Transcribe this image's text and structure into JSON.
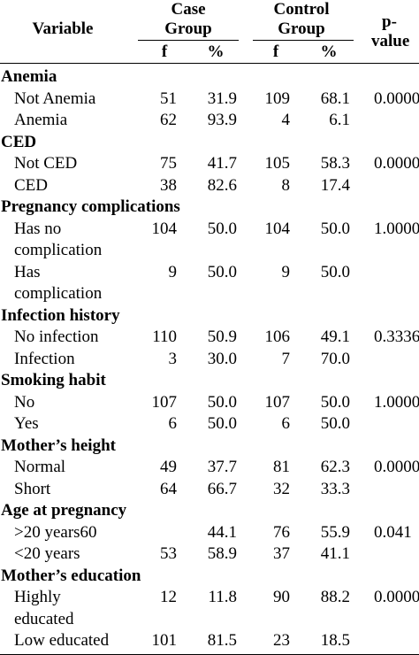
{
  "header": {
    "variable": "Variable",
    "case_group": [
      "Case",
      "Group"
    ],
    "control_group": [
      "Control",
      "Group"
    ],
    "pvalue": [
      "p-",
      "value"
    ],
    "sub": {
      "f1": "f",
      "pct1": "%",
      "f2": "f",
      "pct2": "%"
    }
  },
  "sections": [
    {
      "title": "Anemia",
      "rows": [
        {
          "label": [
            "Not Anemia"
          ],
          "f1": "51",
          "p1": "31.9",
          "f2": "109",
          "p2": "68.1",
          "pv": "0.0000"
        },
        {
          "label": [
            "Anemia"
          ],
          "f1": "62",
          "p1": "93.9",
          "f2": "4",
          "p2": "6.1",
          "pv": ""
        }
      ]
    },
    {
      "title": "CED",
      "rows": [
        {
          "label": [
            "Not CED"
          ],
          "f1": "75",
          "p1": "41.7",
          "f2": "105",
          "p2": "58.3",
          "pv": "0.0000"
        },
        {
          "label": [
            "CED"
          ],
          "f1": "38",
          "p1": "82.6",
          "f2": "8",
          "p2": "17.4",
          "pv": ""
        }
      ]
    },
    {
      "title": "Pregnancy complications",
      "rows": [
        {
          "label": [
            "Has no",
            "complication"
          ],
          "f1": "104",
          "p1": "50.0",
          "f2": "104",
          "p2": "50.0",
          "pv": "1.0000"
        },
        {
          "label": [
            "Has",
            "complication"
          ],
          "f1": "9",
          "p1": "50.0",
          "f2": "9",
          "p2": "50.0",
          "pv": ""
        }
      ]
    },
    {
      "title": "Infection history",
      "rows": [
        {
          "label": [
            "No infection"
          ],
          "f1": "110",
          "p1": "50.9",
          "f2": "106",
          "p2": "49.1",
          "pv": "0.3336"
        },
        {
          "label": [
            "Infection"
          ],
          "f1": "3",
          "p1": "30.0",
          "f2": "7",
          "p2": "70.0",
          "pv": ""
        }
      ]
    },
    {
      "title": "Smoking habit",
      "rows": [
        {
          "label": [
            "No"
          ],
          "f1": "107",
          "p1": "50.0",
          "f2": "107",
          "p2": "50.0",
          "pv": "1.0000"
        },
        {
          "label": [
            "Yes"
          ],
          "f1": "6",
          "p1": "50.0",
          "f2": "6",
          "p2": "50.0",
          "pv": ""
        }
      ]
    },
    {
      "title": "Mother’s height",
      "rows": [
        {
          "label": [
            "Normal"
          ],
          "f1": "49",
          "p1": "37.7",
          "f2": "81",
          "p2": "62.3",
          "pv": "0.0000"
        },
        {
          "label": [
            "Short"
          ],
          "f1": "64",
          "p1": "66.7",
          "f2": "32",
          "p2": "33.3",
          "pv": ""
        }
      ]
    },
    {
      "title": "Age at pregnancy",
      "rows": [
        {
          "label": [
            ">20 years60"
          ],
          "f1": "",
          "p1": "44.1",
          "f2": "76",
          "p2": "55.9",
          "pv": "0.041"
        },
        {
          "label": [
            "<20 years"
          ],
          "f1": "53",
          "p1": "58.9",
          "f2": "37",
          "p2": "41.1",
          "pv": ""
        }
      ]
    },
    {
      "title": "Mother’s education",
      "rows": [
        {
          "label": [
            "Highly",
            "educated"
          ],
          "f1": "12",
          "p1": "11.8",
          "f2": "90",
          "p2": "88.2",
          "pv": "0.0000"
        },
        {
          "label": [
            "Low educated"
          ],
          "f1": "101",
          "p1": "81.5",
          "f2": "23",
          "p2": "18.5",
          "pv": ""
        }
      ]
    }
  ]
}
